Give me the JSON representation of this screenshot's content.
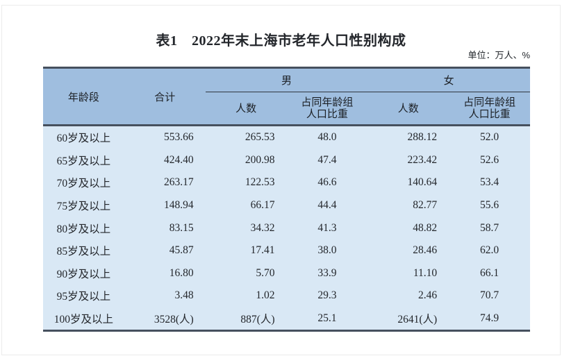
{
  "title": "表1　2022年末上海市老年人口性别构成",
  "unit_note": "单位：万人、%",
  "colors": {
    "header_bg": "#9fbedf",
    "body_bg": "#d9e8f5",
    "rule_dark": "#46505e",
    "rule_thin": "#30363f",
    "text": "#23262b"
  },
  "table": {
    "headers": {
      "age": "年龄段",
      "total": "合计",
      "male": "男",
      "female": "女",
      "count": "人数",
      "share_line1": "占同年龄组",
      "share_line2": "人口比重"
    },
    "rows": [
      {
        "age": "60岁及以上",
        "total": "553.66",
        "m_count": "265.53",
        "m_share": "48.0",
        "f_count": "288.12",
        "f_share": "52.0"
      },
      {
        "age": "65岁及以上",
        "total": "424.40",
        "m_count": "200.98",
        "m_share": "47.4",
        "f_count": "223.42",
        "f_share": "52.6"
      },
      {
        "age": "70岁及以上",
        "total": "263.17",
        "m_count": "122.53",
        "m_share": "46.6",
        "f_count": "140.64",
        "f_share": "53.4"
      },
      {
        "age": "75岁及以上",
        "total": "148.94",
        "m_count": "66.17",
        "m_share": "44.4",
        "f_count": "82.77",
        "f_share": "55.6"
      },
      {
        "age": "80岁及以上",
        "total": "83.15",
        "m_count": "34.32",
        "m_share": "41.3",
        "f_count": "48.82",
        "f_share": "58.7"
      },
      {
        "age": "85岁及以上",
        "total": "45.87",
        "m_count": "17.41",
        "m_share": "38.0",
        "f_count": "28.46",
        "f_share": "62.0"
      },
      {
        "age": "90岁及以上",
        "total": "16.80",
        "m_count": "5.70",
        "m_share": "33.9",
        "f_count": "11.10",
        "f_share": "66.1"
      },
      {
        "age": "95岁及以上",
        "total": "3.48",
        "m_count": "1.02",
        "m_share": "29.3",
        "f_count": "2.46",
        "f_share": "70.7"
      },
      {
        "age": "100岁及以上",
        "total": "3528(人)",
        "m_count": "887(人)",
        "m_share": "25.1",
        "f_count": "2641(人)",
        "f_share": "74.9"
      }
    ]
  }
}
